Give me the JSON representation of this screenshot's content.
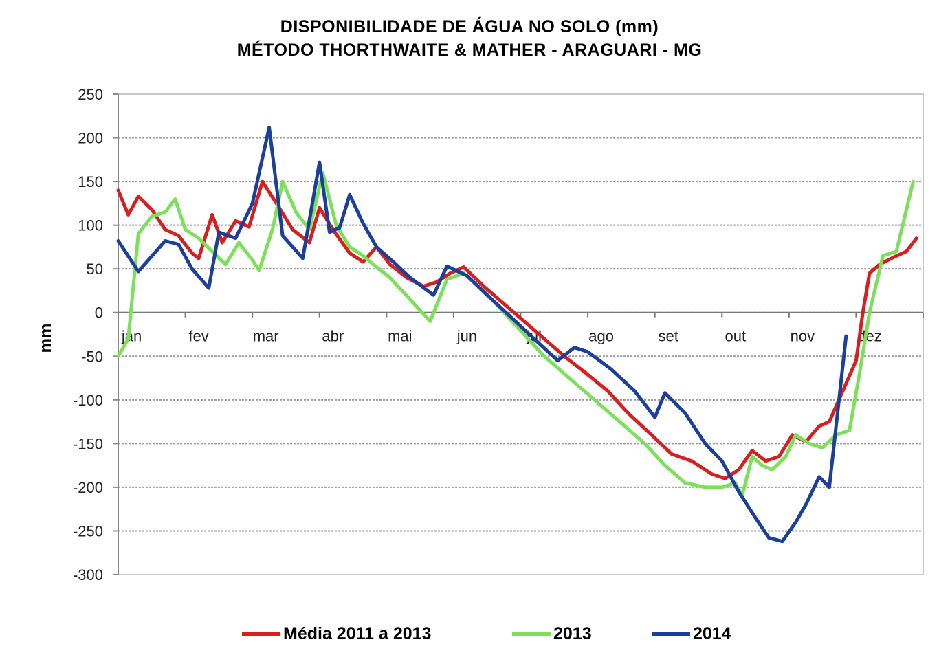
{
  "title_line1": "DISPONIBILIDADE DE ÁGUA NO SOLO (mm)",
  "title_line2": "MÉTODO THORTHWAITE & MATHER - ARAGUARI - MG",
  "chart_data": {
    "type": "line",
    "title": "DISPONIBILIDADE DE ÁGUA NO SOLO (mm) MÉTODO THORTHWAITE & MATHER - ARAGUARI - MG",
    "xlabel": "",
    "ylabel": "mm",
    "ylim": [
      -300,
      250
    ],
    "yticks": [
      250,
      200,
      150,
      100,
      50,
      0,
      -50,
      -100,
      -150,
      -200,
      -250,
      -300
    ],
    "grid": true,
    "legend_position": "bottom",
    "categories": [
      "jan",
      "fev",
      "mar",
      "abr",
      "mai",
      "jun",
      "jul",
      "ago",
      "set",
      "out",
      "nov",
      "dez"
    ],
    "series": [
      {
        "name": "Média 2011 a 2013",
        "color": "#d62020",
        "x": [
          0,
          0.15,
          0.3,
          0.5,
          0.7,
          0.9,
          1.1,
          1.2,
          1.4,
          1.55,
          1.75,
          1.95,
          2.15,
          2.4,
          2.6,
          2.85,
          3.0,
          3.2,
          3.45,
          3.65,
          3.85,
          4.05,
          4.3,
          4.55,
          4.75,
          4.95,
          5.15,
          5.45,
          5.75,
          6.05,
          6.35,
          6.65,
          6.95,
          7.3,
          7.6,
          7.95,
          8.25,
          8.55,
          8.85,
          9.05,
          9.25,
          9.45,
          9.65,
          9.85,
          10.05,
          10.25,
          10.45,
          10.6,
          10.8,
          11.0,
          11.1,
          11.2,
          11.35,
          11.55,
          11.75,
          11.9
        ],
        "values": [
          140,
          112,
          133,
          118,
          95,
          88,
          68,
          62,
          112,
          80,
          105,
          98,
          150,
          120,
          95,
          80,
          120,
          95,
          68,
          58,
          75,
          55,
          40,
          30,
          35,
          45,
          52,
          30,
          10,
          -10,
          -30,
          -50,
          -68,
          -90,
          -115,
          -140,
          -162,
          -170,
          -185,
          -190,
          -180,
          -158,
          -170,
          -165,
          -140,
          -148,
          -130,
          -125,
          -90,
          -55,
          0,
          45,
          55,
          63,
          70,
          85
        ]
      },
      {
        "name": "2013",
        "color": "#7de05a",
        "x": [
          0,
          0.15,
          0.3,
          0.5,
          0.7,
          0.85,
          1.0,
          1.2,
          1.4,
          1.6,
          1.8,
          2.0,
          2.1,
          2.3,
          2.45,
          2.65,
          2.85,
          3.05,
          3.25,
          3.45,
          3.65,
          3.85,
          4.05,
          4.35,
          4.65,
          4.9,
          5.15,
          5.45,
          5.75,
          6.05,
          6.35,
          6.65,
          6.95,
          7.25,
          7.55,
          7.85,
          8.15,
          8.45,
          8.75,
          9.0,
          9.2,
          9.3,
          9.45,
          9.6,
          9.75,
          9.95,
          10.1,
          10.3,
          10.5,
          10.7,
          10.9,
          11.05,
          11.2,
          11.4,
          11.6,
          11.85
        ],
        "values": [
          -50,
          -30,
          90,
          110,
          115,
          130,
          95,
          85,
          70,
          55,
          80,
          60,
          48,
          95,
          150,
          115,
          95,
          160,
          100,
          75,
          65,
          52,
          40,
          15,
          -10,
          38,
          45,
          25,
          0,
          -25,
          -50,
          -70,
          -90,
          -110,
          -130,
          -150,
          -175,
          -195,
          -200,
          -200,
          -195,
          -210,
          -165,
          -175,
          -180,
          -165,
          -140,
          -150,
          -155,
          -140,
          -135,
          -70,
          0,
          65,
          70,
          150
        ]
      },
      {
        "name": "2014",
        "color": "#1c3f9c",
        "x": [
          0,
          0.3,
          0.7,
          0.9,
          1.1,
          1.35,
          1.5,
          1.75,
          2.0,
          2.25,
          2.45,
          2.75,
          3.0,
          3.15,
          3.3,
          3.45,
          3.65,
          3.85,
          4.1,
          4.35,
          4.7,
          4.9,
          5.2,
          5.5,
          5.85,
          6.2,
          6.55,
          6.8,
          7.0,
          7.35,
          7.7,
          8.0,
          8.15,
          8.45,
          8.75,
          9.0,
          9.25,
          9.5,
          9.7,
          9.9,
          10.1,
          10.25,
          10.45,
          10.6,
          10.85
        ],
        "values": [
          82,
          47,
          82,
          78,
          50,
          28,
          92,
          85,
          125,
          212,
          88,
          62,
          172,
          92,
          97,
          135,
          102,
          75,
          58,
          40,
          20,
          53,
          42,
          20,
          -5,
          -30,
          -55,
          -40,
          -45,
          -65,
          -90,
          -120,
          -92,
          -115,
          -150,
          -170,
          -205,
          -235,
          -258,
          -262,
          -240,
          -220,
          -188,
          -200,
          -27
        ]
      }
    ]
  },
  "legend": {
    "items": [
      "Média 2011 a 2013",
      "2013",
      "2014"
    ]
  }
}
